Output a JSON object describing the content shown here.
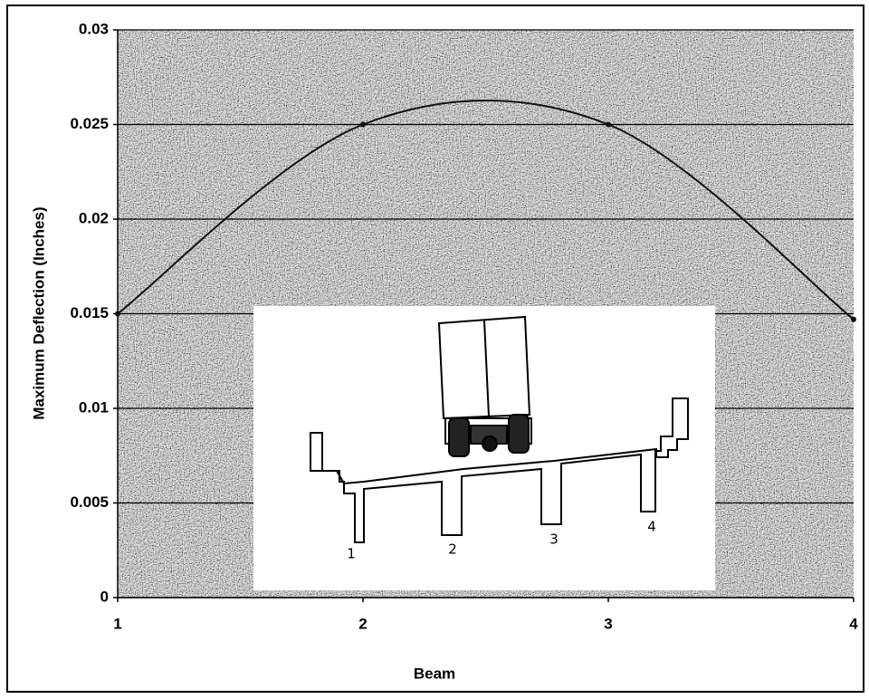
{
  "chart_data": {
    "type": "line",
    "x_label": "Beam",
    "y_label": "Maximum Deflection (Inches)",
    "x": [
      1,
      2,
      3,
      4
    ],
    "values": [
      0.015,
      0.025,
      0.025,
      0.0147
    ],
    "color": "#111111",
    "xlim": [
      1,
      4
    ],
    "xticks": [
      1,
      2,
      3,
      4
    ],
    "ylim": [
      0,
      0.03
    ],
    "yticks": [
      0,
      0.005,
      0.01,
      0.015,
      0.02,
      0.025,
      0.03
    ],
    "grid": true,
    "annotations": [
      "1",
      "2",
      "3",
      "4"
    ]
  }
}
